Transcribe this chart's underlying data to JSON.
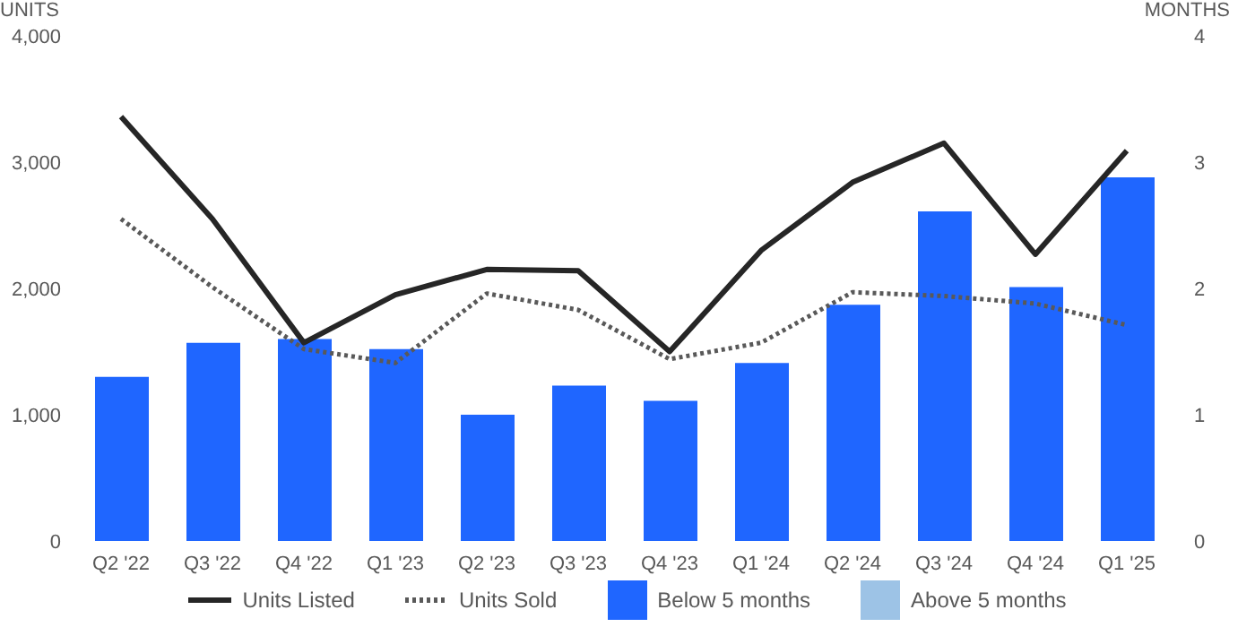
{
  "chart_data": {
    "type": "bar",
    "ylabel": "UNITS",
    "y2label": "MONTHS",
    "categories": [
      "Q2 '22",
      "Q3 '22",
      "Q4 '22",
      "Q1 '23",
      "Q2 '23",
      "Q3 '23",
      "Q4 '23",
      "Q1 '24",
      "Q2 '24",
      "Q3 '24",
      "Q4 '24",
      "Q1 '25"
    ],
    "series": [
      {
        "name": "Units Listed",
        "type": "line",
        "color": "#262626",
        "line_style": "solid",
        "values": [
          3360,
          2550,
          1570,
          1950,
          2150,
          2140,
          1500,
          2300,
          2840,
          3150,
          2270,
          3090
        ]
      },
      {
        "name": "Units Sold",
        "type": "line",
        "color": "#595959",
        "line_style": "dotted",
        "values": [
          2550,
          2010,
          1520,
          1410,
          1960,
          1830,
          1440,
          1570,
          1970,
          1940,
          1880,
          1710
        ]
      },
      {
        "name": "Below 5 months",
        "axis": "y2",
        "color": "#1f66ff",
        "values": [
          1.3,
          1.57,
          1.6,
          1.52,
          1.0,
          1.23,
          1.11,
          1.41,
          1.87,
          2.61,
          2.01,
          2.88
        ]
      },
      {
        "name": "Above 5 months",
        "axis": "y2",
        "color": "#9dc3e6",
        "values": [
          null,
          null,
          null,
          null,
          null,
          null,
          null,
          null,
          null,
          null,
          null,
          null
        ]
      }
    ],
    "stacked": true,
    "marker": "none",
    "ylim": [
      0,
      4000
    ],
    "yticks": [
      {
        "value": 0,
        "label": "0"
      },
      {
        "value": 1000,
        "label": "1,000"
      },
      {
        "value": 2000,
        "label": "2,000"
      },
      {
        "value": 3000,
        "label": "3,000"
      },
      {
        "value": 4000,
        "label": "4,000"
      }
    ],
    "y2lim": [
      0,
      4
    ],
    "y2ticks": [
      0,
      1,
      2,
      3,
      4
    ],
    "grid": false,
    "legend": "bottom"
  }
}
